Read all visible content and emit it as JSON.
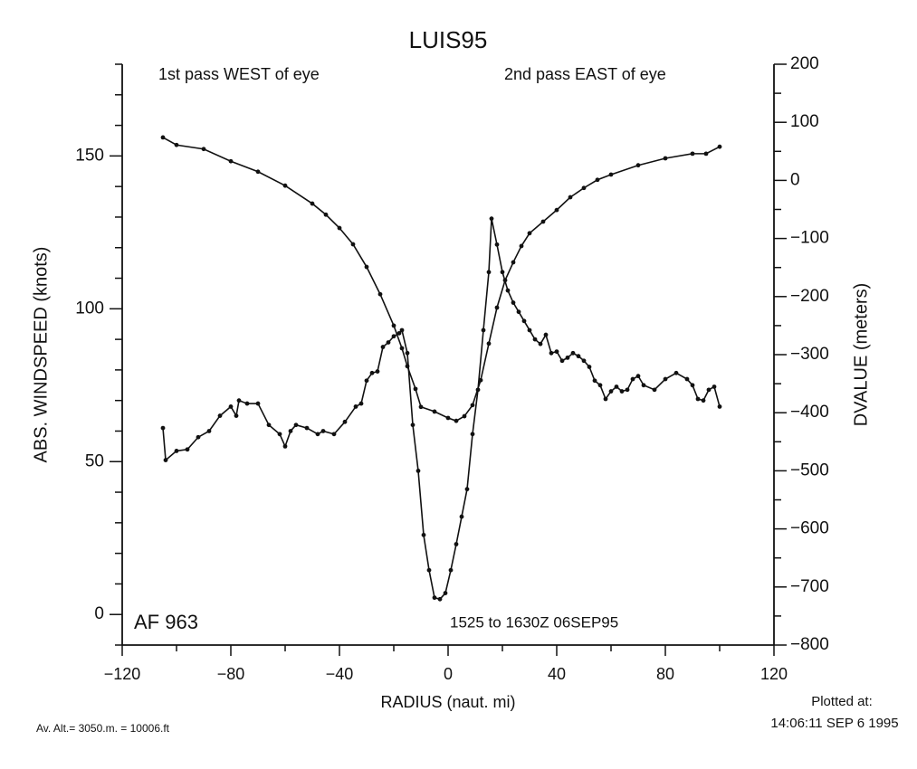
{
  "chart_data": {
    "type": "line",
    "title": "LUIS95",
    "xlabel": "RADIUS (naut. mi)",
    "ylabel": "ABS. WINDSPEED (knots)",
    "y2label": "DVALUE (meters)",
    "annotations": [
      "1st pass WEST of eye",
      "2nd pass EAST of eye",
      "AF 963",
      "1525 to 1630Z 06SEP95",
      "Av. Alt.= 3050.m. = 10006.ft",
      "Plotted at:",
      "14:06:11 SEP  6 1995"
    ],
    "xlim": [
      -120,
      120
    ],
    "xticks": [
      {
        "value": -120,
        "label": "−120"
      },
      {
        "value": -80,
        "label": "−80"
      },
      {
        "value": -40,
        "label": "−40"
      },
      0,
      40,
      80,
      120
    ],
    "xminorticks": [
      -100,
      -60,
      -20,
      20,
      60,
      100
    ],
    "ylim": [
      -10,
      180
    ],
    "yticks": [
      0,
      50,
      100,
      150
    ],
    "yminorticks": [
      -10,
      10,
      20,
      30,
      40,
      60,
      70,
      80,
      90,
      110,
      120,
      130,
      140,
      160,
      170,
      180
    ],
    "y2lim": [
      -800,
      200
    ],
    "y2ticks": [
      {
        "value": -800,
        "label": "−800"
      },
      {
        "value": -700,
        "label": "−700"
      },
      {
        "value": -600,
        "label": "−600"
      },
      {
        "value": -500,
        "label": "−500"
      },
      {
        "value": -400,
        "label": "−400"
      },
      {
        "value": -300,
        "label": "−300"
      },
      {
        "value": -200,
        "label": "−200"
      },
      {
        "value": -100,
        "label": "−100"
      },
      0,
      100,
      200
    ],
    "y2minorticks": [
      -750,
      -650,
      -550,
      -450,
      -350,
      -250,
      -150,
      -50,
      50,
      150
    ],
    "series": [
      {
        "name": "ABS. WINDSPEED",
        "color": "#111111",
        "axis": "y",
        "x": [
          -105,
          -104,
          -100,
          -96,
          -92,
          -88,
          -84,
          -80,
          -78,
          -77,
          -74,
          -70,
          -66,
          -62,
          -60,
          -58,
          -56,
          -52,
          -48,
          -46,
          -42,
          -38,
          -34,
          -32,
          -30,
          -28,
          -26,
          -24,
          -22,
          -20,
          -18,
          -17,
          -15,
          -13,
          -11,
          -9,
          -7,
          -5,
          -3,
          -1,
          1,
          3,
          5,
          7,
          9,
          11,
          13,
          15,
          16,
          18,
          20,
          22,
          24,
          26,
          28,
          30,
          32,
          34,
          36,
          38,
          40,
          42,
          44,
          46,
          48,
          50,
          52,
          54,
          56,
          58,
          60,
          62,
          64,
          66,
          68,
          70,
          72,
          76,
          80,
          84,
          88,
          90,
          92,
          94,
          96,
          98,
          100
        ],
        "values": [
          61,
          50.5,
          53.5,
          54,
          58,
          60,
          65,
          68,
          65,
          70,
          69,
          69,
          62,
          59,
          55,
          60,
          62,
          61,
          59,
          60,
          59,
          63,
          68,
          69,
          76.5,
          79,
          79.5,
          87.5,
          89,
          91,
          92,
          93,
          85.5,
          62,
          47,
          26,
          14.5,
          5.5,
          5,
          7,
          14.5,
          23,
          32,
          41,
          59,
          73.5,
          93,
          112,
          129.5,
          121,
          112,
          106,
          102,
          99,
          96,
          93,
          90,
          88.5,
          91.5,
          85.5,
          86,
          83,
          84,
          85.5,
          84.5,
          83,
          81,
          76.5,
          75,
          70.5,
          73,
          74.5,
          73,
          73.5,
          77,
          78,
          75,
          73.5,
          77,
          79,
          77,
          75,
          70.5,
          70,
          73.5,
          74.5,
          68
        ]
      },
      {
        "name": "DVALUE",
        "color": "#111111",
        "axis": "y2",
        "x": [
          -105,
          -100,
          -90,
          -80,
          -70,
          -60,
          -50,
          -45,
          -40,
          -35,
          -30,
          -25,
          -20,
          -17,
          -15,
          -12,
          -10,
          -5,
          0,
          3,
          6,
          9,
          12,
          15,
          18,
          21,
          24,
          27,
          30,
          35,
          40,
          45,
          50,
          55,
          60,
          70,
          80,
          90,
          95,
          100
        ],
        "values": [
          74,
          61,
          54,
          33,
          15,
          -9,
          -40,
          -59,
          -82,
          -110,
          -149,
          -196,
          -250,
          -289,
          -320,
          -359,
          -390,
          -398,
          -409,
          -414,
          -406,
          -387,
          -344,
          -281,
          -219,
          -172,
          -141,
          -113,
          -91,
          -71,
          -51,
          -29,
          -13,
          1,
          10,
          26,
          38,
          46,
          46,
          58
        ]
      }
    ]
  }
}
